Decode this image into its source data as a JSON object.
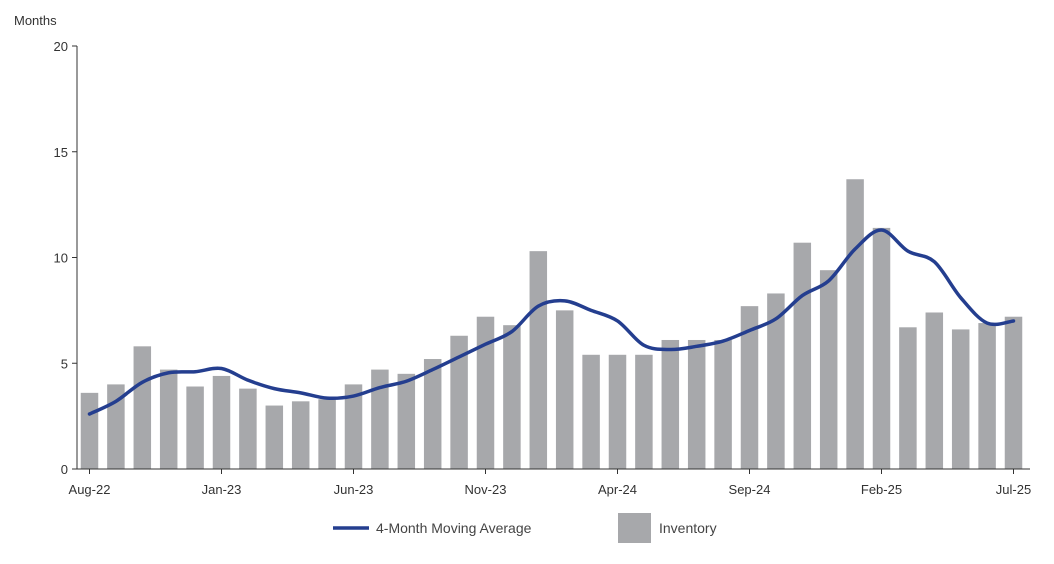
{
  "chart_data": {
    "type": "bar",
    "ylabel": "Months",
    "ylim": [
      0,
      20
    ],
    "yticks": [
      0,
      5,
      10,
      15,
      20
    ],
    "grid": false,
    "legend_position": "bottom",
    "categories": [
      "Aug-22",
      "Sep-22",
      "Oct-22",
      "Nov-22",
      "Dec-22",
      "Jan-23",
      "Feb-23",
      "Mar-23",
      "Apr-23",
      "May-23",
      "Jun-23",
      "Jul-23",
      "Aug-23",
      "Sep-23",
      "Oct-23",
      "Nov-23",
      "Dec-23",
      "Jan-24",
      "Feb-24",
      "Mar-24",
      "Apr-24",
      "May-24",
      "Jun-24",
      "Jul-24",
      "Aug-24",
      "Sep-24",
      "Oct-24",
      "Nov-24",
      "Dec-24",
      "Jan-25",
      "Feb-25",
      "Mar-25",
      "Apr-25",
      "May-25",
      "Jun-25",
      "Jul-25"
    ],
    "xtick_labels": [
      "Aug-22",
      "Jan-23",
      "Jun-23",
      "Nov-23",
      "Apr-24",
      "Sep-24",
      "Feb-25",
      "Jul-25"
    ],
    "xtick_indices": [
      0,
      5,
      10,
      15,
      20,
      25,
      30,
      35
    ],
    "series": [
      {
        "name": "Inventory",
        "kind": "bar",
        "color": "#a7a8ab",
        "values": [
          3.6,
          4.0,
          5.8,
          4.7,
          3.9,
          4.4,
          3.8,
          3.0,
          3.2,
          3.3,
          4.0,
          4.7,
          4.5,
          5.2,
          6.3,
          7.2,
          6.8,
          10.3,
          7.5,
          5.4,
          5.4,
          5.4,
          6.1,
          6.1,
          6.1,
          7.7,
          8.3,
          10.7,
          9.4,
          13.7,
          11.4,
          6.7,
          7.4,
          6.6,
          6.9,
          7.2
        ]
      },
      {
        "name": "4-Month Moving Average",
        "kind": "line",
        "color": "#243e8f",
        "values": [
          2.6,
          3.2,
          4.1,
          4.55,
          4.6,
          4.75,
          4.2,
          3.8,
          3.6,
          3.35,
          3.45,
          3.85,
          4.15,
          4.7,
          5.3,
          5.9,
          6.5,
          7.7,
          7.95,
          7.5,
          7.0,
          5.85,
          5.65,
          5.8,
          6.05,
          6.55,
          7.1,
          8.2,
          8.9,
          10.4,
          11.3,
          10.3,
          9.8,
          8.1,
          6.9,
          7.0
        ]
      }
    ]
  }
}
